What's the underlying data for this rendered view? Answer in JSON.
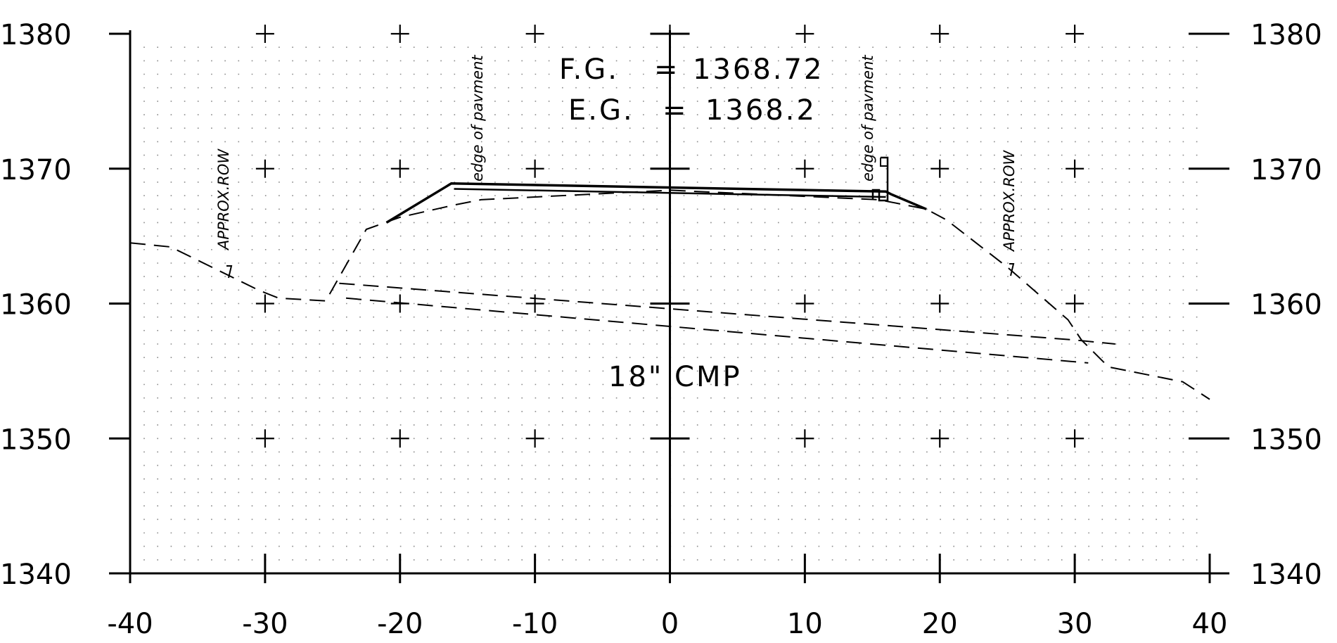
{
  "diagram": {
    "type": "road cross-section",
    "x_range": [
      -40,
      40
    ],
    "y_range": [
      1340,
      1380
    ],
    "x_ticks": [
      -40,
      -30,
      -20,
      -10,
      0,
      10,
      20,
      30,
      40
    ],
    "y_ticks": [
      1340,
      1350,
      1360,
      1370,
      1380
    ],
    "x_tick_labels": [
      "-40",
      "-30",
      "-20",
      "-10",
      "0",
      "10",
      "20",
      "30",
      "40"
    ],
    "y_tick_labels": [
      "1340",
      "1350",
      "1360",
      "1370",
      "1380"
    ],
    "grid": "dotted",
    "colors": {
      "line": "#000000",
      "background": "#ffffff",
      "grid_dot": "#8a8a8a"
    }
  },
  "annotations": {
    "fg_label": "F.G.",
    "fg_equals": "=",
    "fg_value": "1368.72",
    "eg_label": "E.G.",
    "eg_equals": "=",
    "eg_value": "1368.2",
    "culvert": "18\"  CMP",
    "edge_left": "edge of pavment",
    "edge_right": "edge of pavment",
    "row_left": "APPROX.ROW",
    "row_right": "APPROX.ROW"
  },
  "profiles": {
    "finished_grade": [
      [
        -21,
        1366.0
      ],
      [
        -16.2,
        1368.9
      ],
      [
        16.0,
        1368.3
      ],
      [
        16.4,
        1368.1
      ],
      [
        19.0,
        1367.0
      ]
    ],
    "pavement_underside": [
      [
        -16.0,
        1368.5
      ],
      [
        16.0,
        1367.9
      ]
    ],
    "existing_grade": [
      [
        -40,
        1364.5
      ],
      [
        -37,
        1364.2
      ],
      [
        -30.5,
        1361.0
      ],
      [
        -29.0,
        1360.4
      ],
      [
        -25.5,
        1360.2
      ],
      [
        -22.5,
        1365.5
      ],
      [
        -20.0,
        1366.4
      ],
      [
        -16.0,
        1367.3
      ],
      [
        -14.0,
        1367.7
      ],
      [
        0,
        1368.4
      ],
      [
        15.5,
        1367.7
      ],
      [
        19.0,
        1367.0
      ],
      [
        20.5,
        1366.2
      ],
      [
        25.0,
        1362.7
      ],
      [
        29.5,
        1358.8
      ],
      [
        30.5,
        1357.3
      ],
      [
        32.5,
        1355.3
      ],
      [
        38.0,
        1354.2
      ],
      [
        40,
        1352.9
      ]
    ],
    "culvert_top": [
      [
        -24.5,
        1361.5
      ],
      [
        30.0,
        1357.3
      ],
      [
        33.0,
        1357.0
      ]
    ],
    "culvert_bottom": [
      [
        -24.0,
        1360.4
      ],
      [
        31.0,
        1355.6
      ]
    ]
  }
}
